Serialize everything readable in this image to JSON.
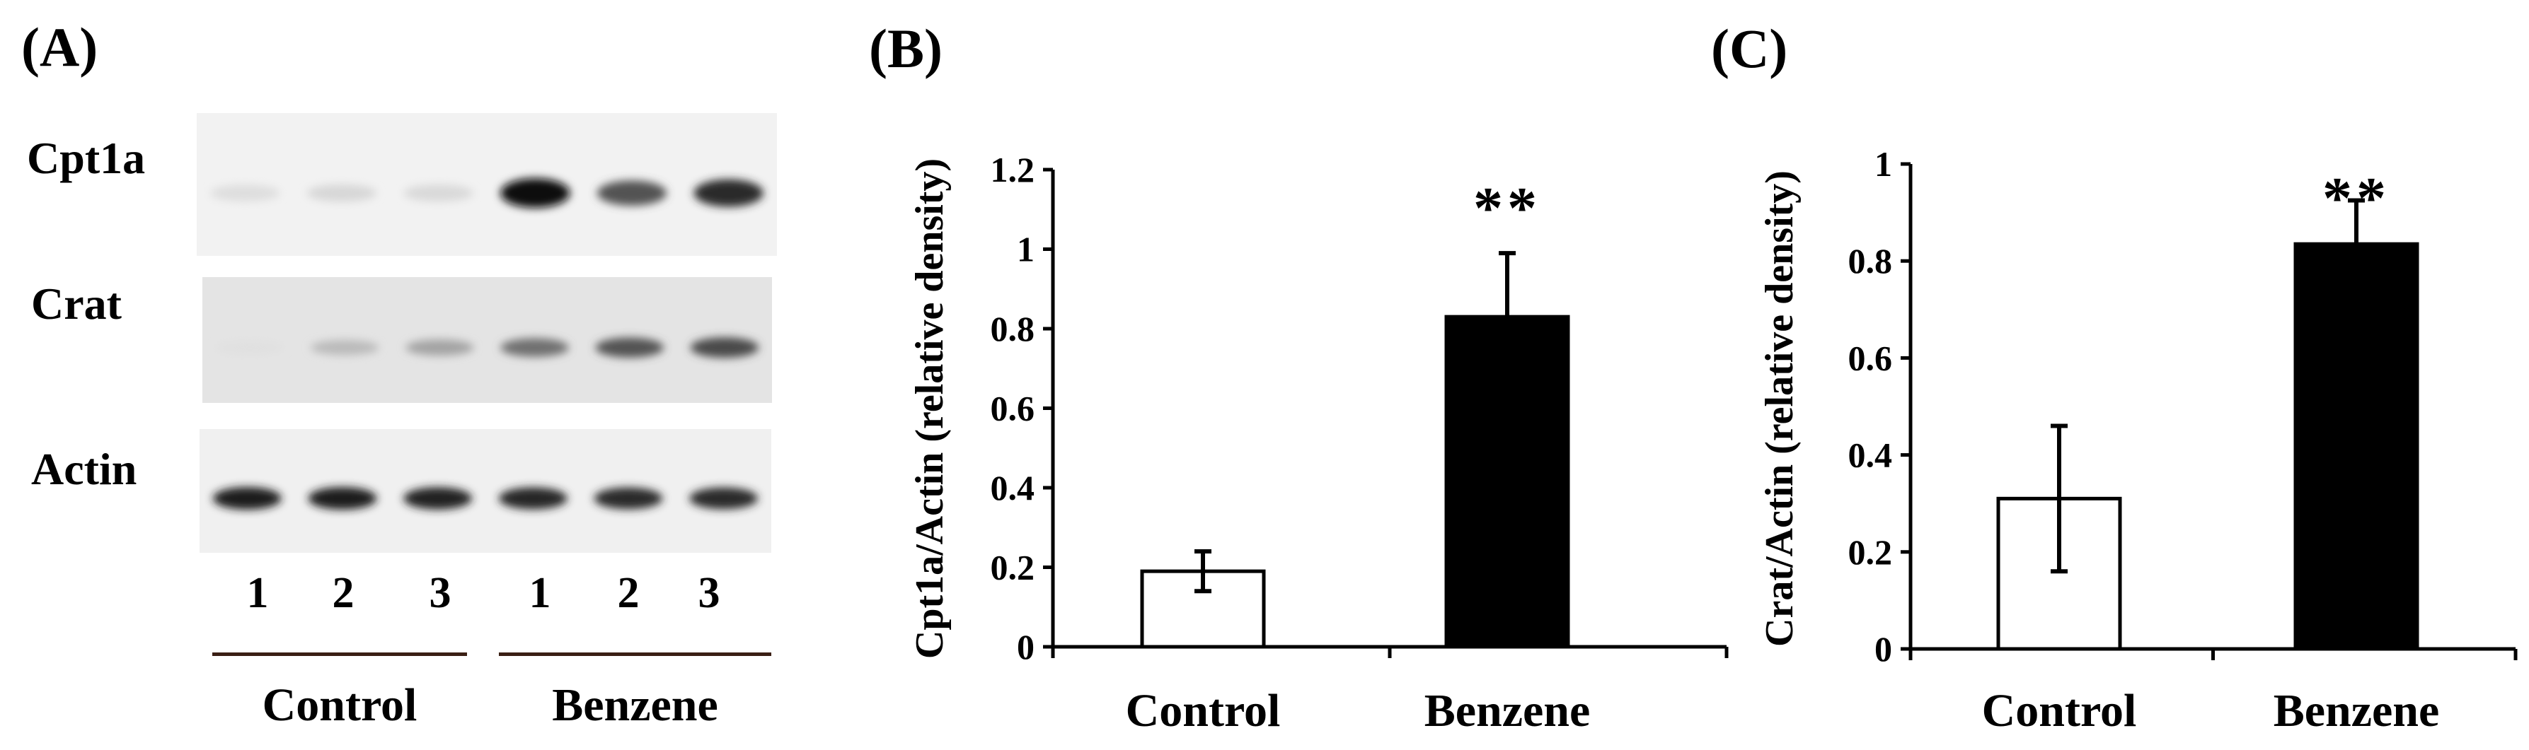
{
  "panel_a": {
    "letter": "(A)",
    "blots": [
      {
        "label": "Cpt1a",
        "band_intensity": [
          0.06,
          0.09,
          0.08,
          1.0,
          0.68,
          0.85
        ]
      },
      {
        "label": "Crat",
        "band_intensity": [
          0.05,
          0.22,
          0.32,
          0.55,
          0.68,
          0.72
        ]
      },
      {
        "label": "Actin",
        "band_intensity": [
          0.92,
          0.92,
          0.9,
          0.88,
          0.86,
          0.86
        ]
      }
    ],
    "lanes": [
      "1",
      "2",
      "3",
      "1",
      "2",
      "3"
    ],
    "groups": [
      "Control",
      "Benzene"
    ]
  },
  "chart_data": [
    {
      "type": "bar",
      "panel": "(B)",
      "categories": [
        "Control",
        "Benzene"
      ],
      "values": [
        0.19,
        0.83
      ],
      "errors": [
        0.05,
        0.16
      ],
      "bar_colors": [
        "#ffffff",
        "#000000"
      ],
      "significance": [
        "",
        "**"
      ],
      "title": "",
      "xlabel": "",
      "ylabel": "Cpt1a/Actin (relative density)",
      "ylim": [
        0,
        1.2
      ],
      "yticks": [
        "0",
        "0.2",
        "0.4",
        "0.6",
        "0.8",
        "1",
        "1.2"
      ],
      "grid": false
    },
    {
      "type": "bar",
      "panel": "(C)",
      "categories": [
        "Control",
        "Benzene"
      ],
      "values": [
        0.31,
        0.835
      ],
      "errors": [
        0.15,
        0.09
      ],
      "bar_colors": [
        "#ffffff",
        "#000000"
      ],
      "significance": [
        "",
        "**"
      ],
      "title": "",
      "xlabel": "",
      "ylabel": "Crat/Actin (relative density)",
      "ylim": [
        0,
        1
      ],
      "yticks": [
        "0",
        "0.2",
        "0.4",
        "0.6",
        "0.8",
        "1"
      ],
      "grid": false
    }
  ]
}
